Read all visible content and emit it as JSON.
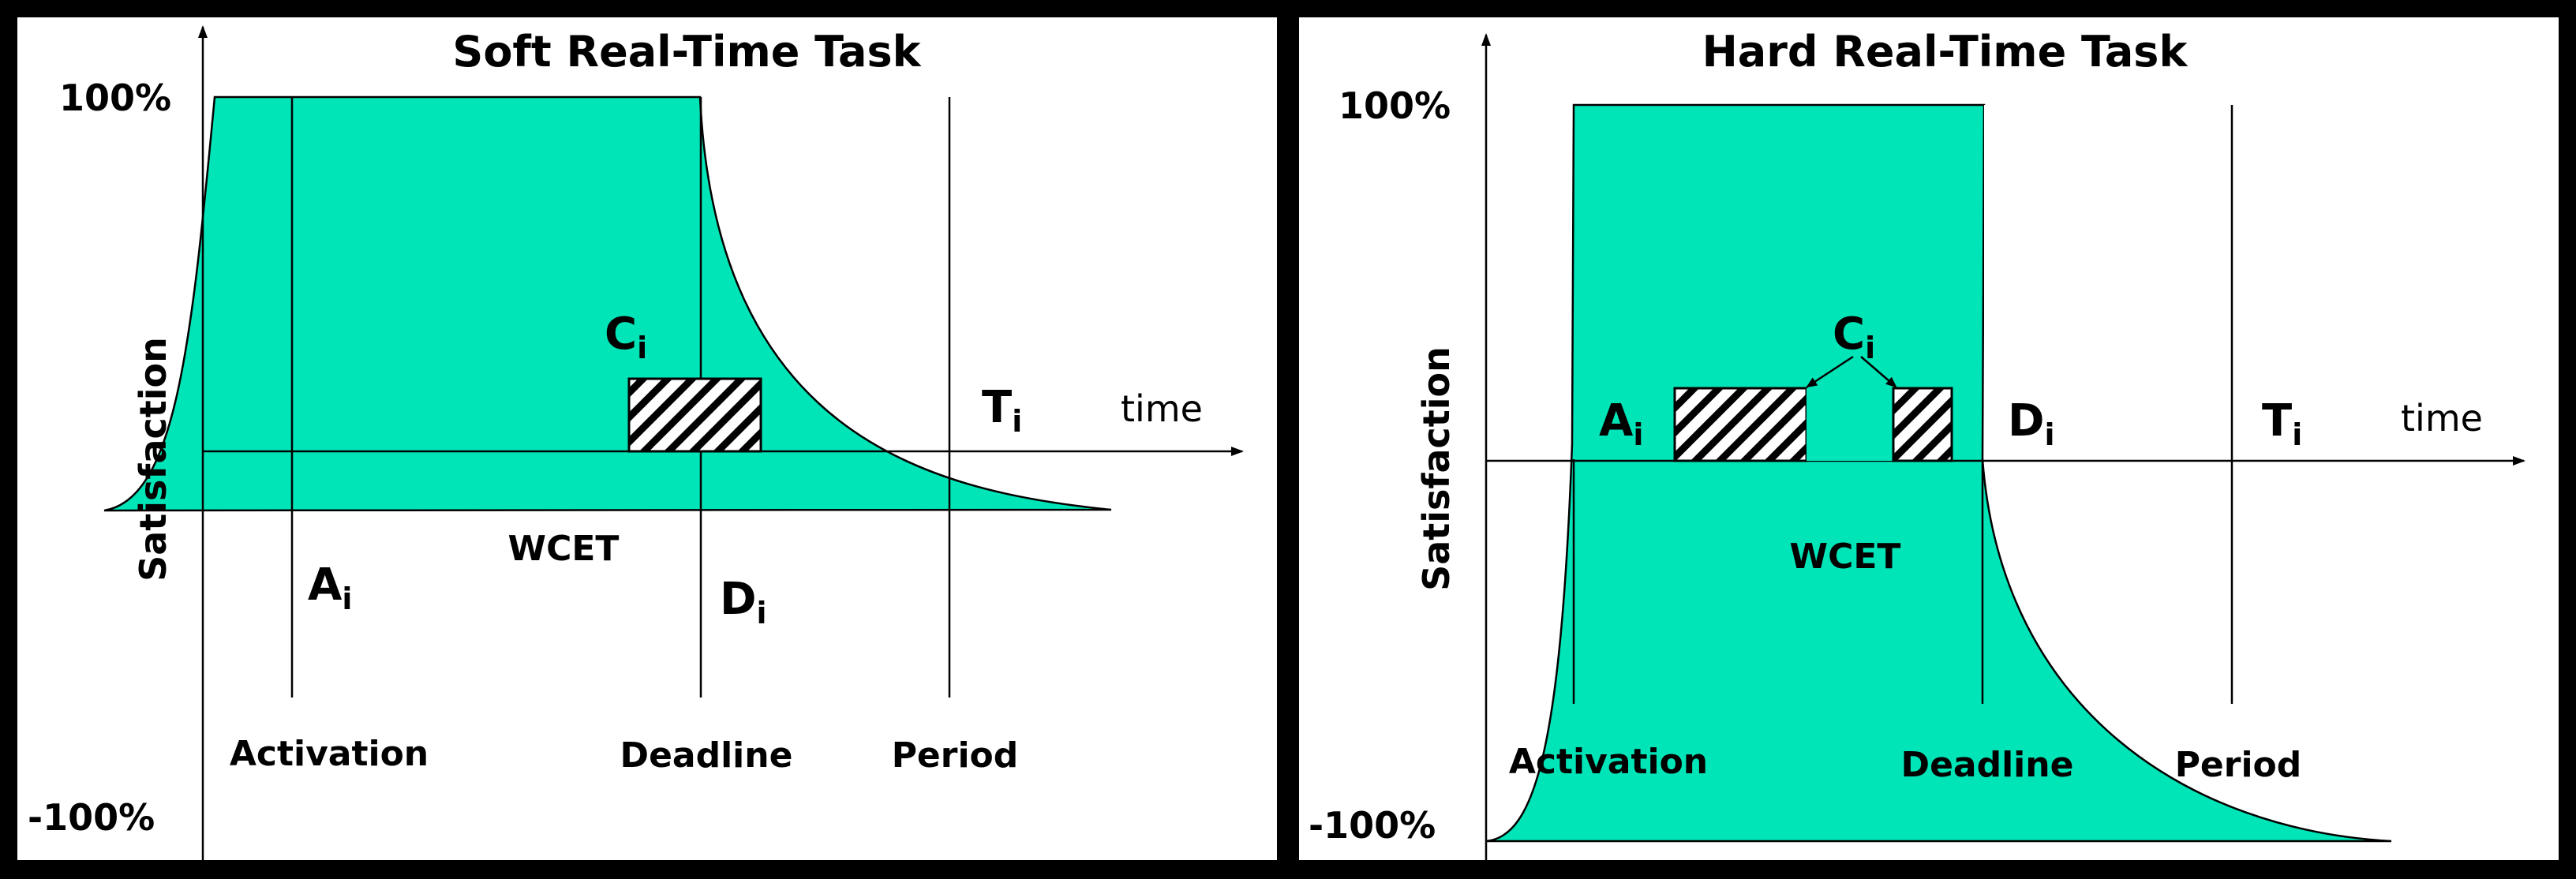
{
  "colors": {
    "fill": "#00E5B8",
    "line": "#000000",
    "background": "#ffffff",
    "frame": "#000000"
  },
  "soft": {
    "title": "Soft Real-Time Task",
    "y_top": "100%",
    "y_bottom": "-100%",
    "y_axis_label": "Satisfaction",
    "x_axis_label": "time",
    "a": "A",
    "a_sub": "i",
    "c": "C",
    "c_sub": "i",
    "d": "D",
    "d_sub": "i",
    "t": "T",
    "t_sub": "i",
    "wcet": "WCET",
    "activation": "Activation",
    "deadline": "Deadline",
    "period": "Period"
  },
  "hard": {
    "title": "Hard Real-Time Task",
    "y_top": "100%",
    "y_bottom": "-100%",
    "y_axis_label": "Satisfaction",
    "x_axis_label": "time",
    "a": "A",
    "a_sub": "i",
    "c": "C",
    "c_sub": "i",
    "d": "D",
    "d_sub": "i",
    "t": "T",
    "t_sub": "i",
    "wcet": "WCET",
    "activation": "Activation",
    "deadline": "Deadline",
    "period": "Period"
  }
}
